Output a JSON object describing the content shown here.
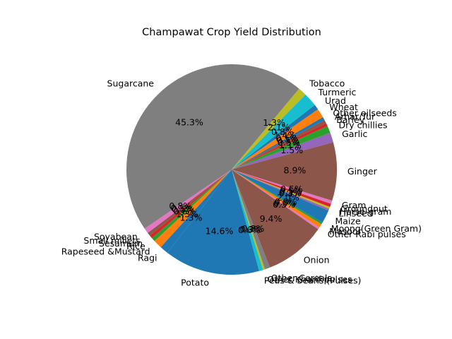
{
  "chart_data": {
    "type": "pie",
    "title": "Champawat Crop Yield Distribution",
    "labels": [
      "Garlic",
      "Dry chillies",
      "Barley",
      "Arhar/Tur",
      "Other oilseeds",
      "Wheat",
      "Urad",
      "Turmeric",
      "Tobacco",
      "Sugarcane",
      "Soyabean",
      "Small millets",
      "Sesamum",
      "Rice",
      "Rapeseed &Mustard",
      "Ragi",
      "Potato",
      "Peas & beans (Pulses)",
      "Other Kharif pulses",
      "Other Cereals",
      "Onion",
      "Other Rabi pulses",
      "Masoor",
      "Moong(Green Gram)",
      "Maize",
      "Linseed",
      "Horse-gram",
      "Groundnut",
      "Gram",
      "Ginger"
    ],
    "values": [
      1.5,
      1.1,
      0.5,
      0.5,
      0.5,
      1.4,
      0.8,
      2.1,
      1.3,
      45.3,
      0.8,
      0.5,
      0.5,
      0.6,
      1.3,
      1.3,
      14.6,
      0.6,
      0.3,
      0.8,
      9.4,
      0.3,
      0.6,
      0.3,
      2.0,
      0.3,
      0.3,
      0.5,
      0.5,
      8.9
    ],
    "percent_labels": [
      "1.5%",
      "1.1%",
      "0.5%",
      "0.5%",
      "0.5%",
      "1.4%",
      "0.8%",
      "2.1%",
      "1.3%",
      "45.3%",
      "0.8%",
      "0.5%",
      "0.5%",
      "0.6%",
      "1.3%",
      "1.3%",
      "14.6%",
      "0.6%",
      "0.3%",
      "0.8%",
      "9.4%",
      "0.3%",
      "0.6%",
      "0.3%",
      "2.0%",
      "0.3%",
      "0.3%",
      "0.5%",
      "0.5%",
      "8.9%"
    ],
    "colors": [
      "#9467bd",
      "#2ca02c",
      "#d62728",
      "#8c564b",
      "#1f77b4",
      "#ff7f0e",
      "#1f77b4",
      "#17becf",
      "#bcbd22",
      "#7f7f7f",
      "#e377c2",
      "#8c564b",
      "#d62728",
      "#2ca02c",
      "#ff7f0e",
      "#1f77b4",
      "#1f77b4",
      "#17becf",
      "#bcbd22",
      "#7f7f7f",
      "#8c564b",
      "#e377c2",
      "#ff7f0e",
      "#2ca02c",
      "#1f77b4",
      "#9467bd",
      "#bcbd22",
      "#d62728",
      "#e377c2",
      "#8c564b"
    ],
    "start_angle_deg": 15,
    "direction": "counterclockwise"
  }
}
